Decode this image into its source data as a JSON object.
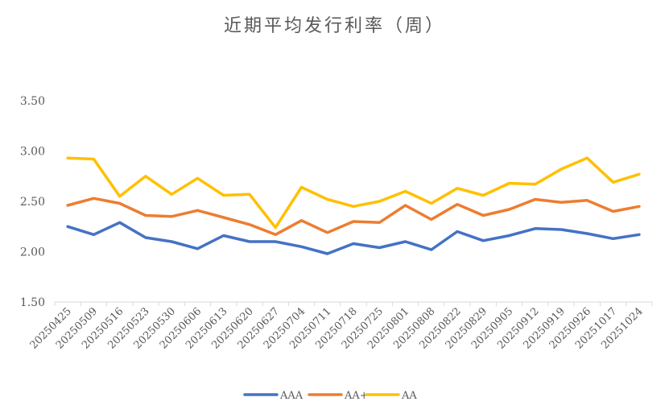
{
  "chart_data": {
    "type": "line",
    "title": "近期平均发行利率（周）",
    "xlabel": "",
    "ylabel": "",
    "ylim": [
      1.5,
      3.5
    ],
    "yticks": [
      "1.50",
      "2.00",
      "2.50",
      "3.00",
      "3.50"
    ],
    "ytick_values": [
      1.5,
      2.0,
      2.5,
      3.0,
      3.5
    ],
    "grid": false,
    "legend_position": "bottom",
    "categories": [
      "20250425",
      "20250509",
      "20250516",
      "20250523",
      "20250530",
      "20250606",
      "20250613",
      "20250620",
      "20250627",
      "20250704",
      "20250711",
      "20250718",
      "20250725",
      "20250801",
      "20250808",
      "20250822",
      "20250829",
      "20250905",
      "20250912",
      "20250919",
      "20250926",
      "20251017",
      "20251024"
    ],
    "series": [
      {
        "name": "AAA",
        "color": "#4472C4",
        "values": [
          2.25,
          2.17,
          2.29,
          2.14,
          2.1,
          2.03,
          2.16,
          2.1,
          2.1,
          2.05,
          1.98,
          2.08,
          2.04,
          2.1,
          2.02,
          2.2,
          2.11,
          2.16,
          2.23,
          2.22,
          2.18,
          2.13,
          2.17
        ]
      },
      {
        "name": "AA+",
        "color": "#ED7D31",
        "values": [
          2.46,
          2.53,
          2.48,
          2.36,
          2.35,
          2.41,
          2.34,
          2.27,
          2.17,
          2.31,
          2.19,
          2.3,
          2.29,
          2.46,
          2.32,
          2.47,
          2.36,
          2.42,
          2.52,
          2.49,
          2.51,
          2.4,
          2.45
        ]
      },
      {
        "name": "AA",
        "color": "#FFC000",
        "values": [
          2.93,
          2.92,
          2.55,
          2.75,
          2.57,
          2.73,
          2.56,
          2.57,
          2.24,
          2.64,
          2.52,
          2.45,
          2.5,
          2.6,
          2.48,
          2.63,
          2.56,
          2.68,
          2.67,
          2.82,
          2.93,
          2.69,
          2.77
        ]
      }
    ]
  }
}
